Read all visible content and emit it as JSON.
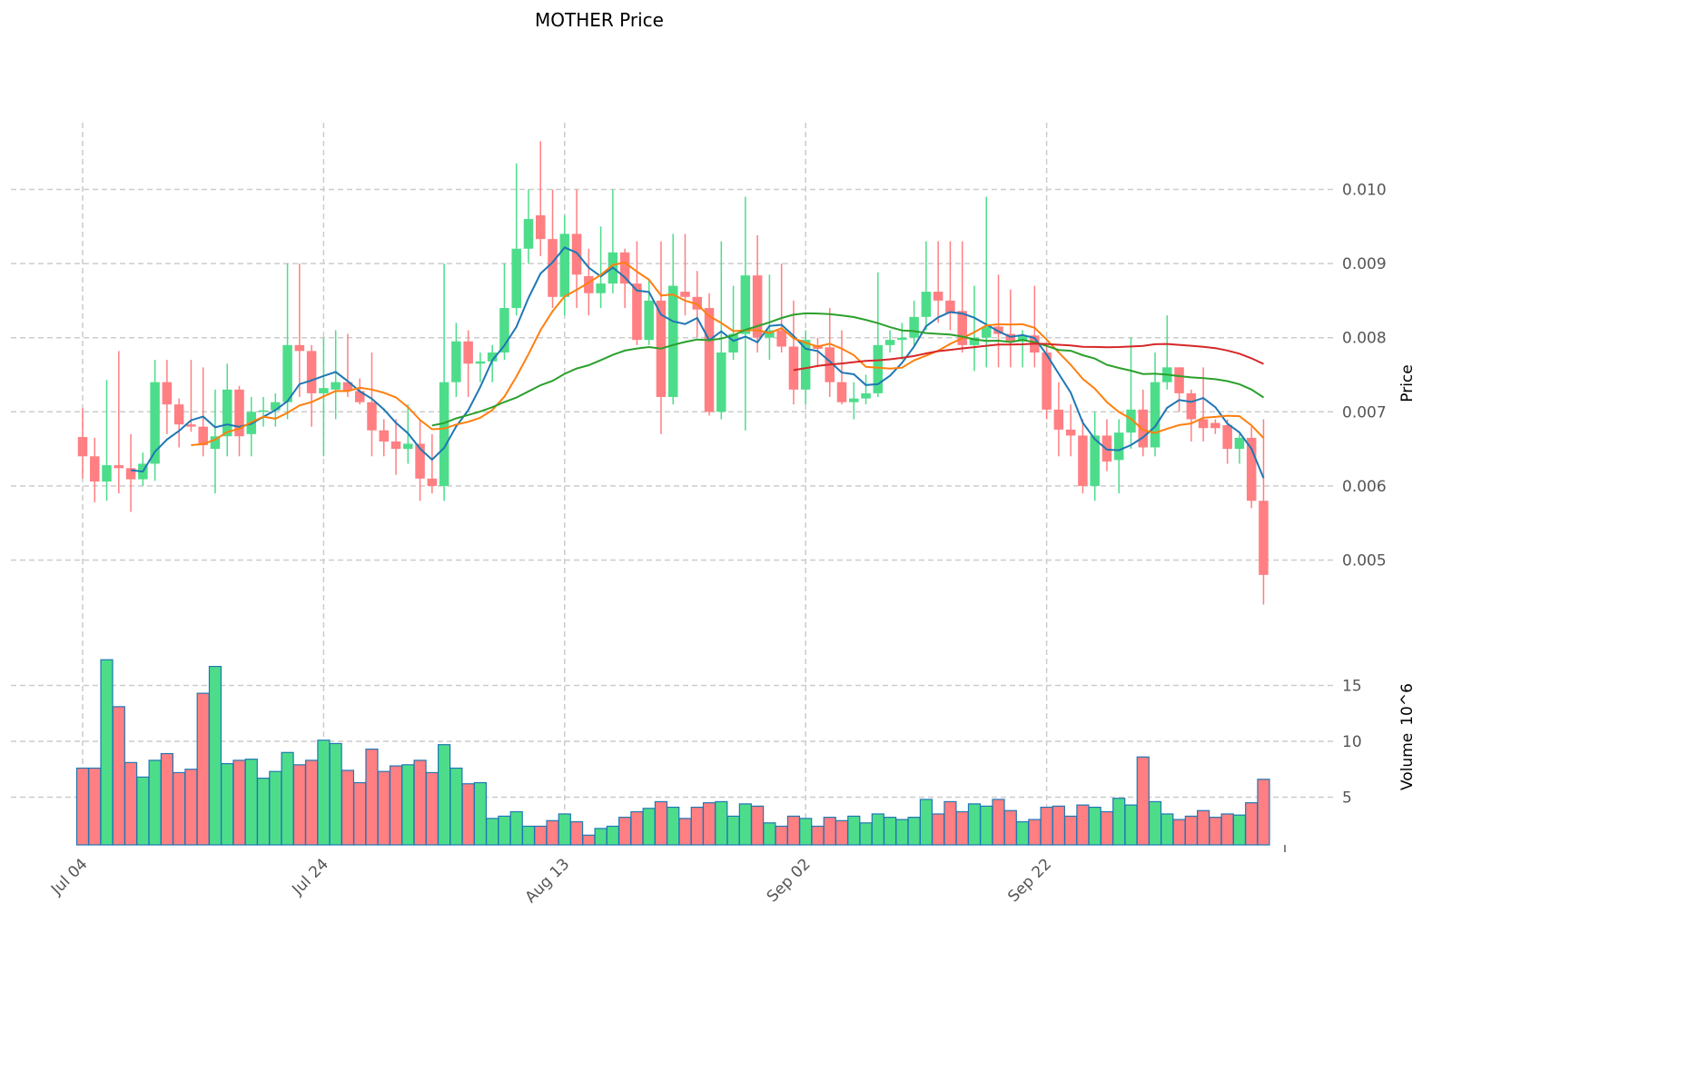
{
  "chart_data": {
    "type": "candlestick",
    "title": "MOTHER Price",
    "ylabel": "Price",
    "volume_label": "Volume",
    "volume_multiplier": "10^6",
    "volume_mult_base": "10",
    "volume_mult_exp": "6",
    "x_tick_labels": [
      "Jul 04",
      "Jul 24",
      "Aug 13",
      "Sep 02",
      "Sep 22"
    ],
    "x_tick_indices": [
      0,
      20,
      40,
      60,
      80
    ],
    "price_ticks": [
      "0.005",
      "0.006",
      "0.007",
      "0.008",
      "0.009",
      "0.010"
    ],
    "price_tick_values": [
      0.005,
      0.006,
      0.007,
      0.008,
      0.009,
      0.01
    ],
    "price_ylim": [
      0.0041,
      0.0109
    ],
    "volume_ticks": [
      "5",
      "10",
      "15"
    ],
    "volume_tick_values": [
      5,
      10,
      15
    ],
    "volume_ylim": [
      0,
      18.5
    ],
    "grid": true,
    "colors": {
      "up": "#4ddd8a",
      "down": "#ff7f82",
      "volume_edge": "#1f77b4",
      "grid": "#cccccc"
    },
    "moving_averages": [
      {
        "window": 5,
        "color": "#1f77b4"
      },
      {
        "window": 10,
        "color": "#ff7f0e"
      },
      {
        "window": 30,
        "color": "#2ca02c"
      },
      {
        "window": 60,
        "color": "#d62728"
      }
    ],
    "ohlc_columns": [
      "open",
      "high",
      "low",
      "close"
    ],
    "ohlc": [
      [
        0.00666,
        0.00705,
        0.0061,
        0.0064
      ],
      [
        0.0064,
        0.00665,
        0.00578,
        0.00606
      ],
      [
        0.00606,
        0.00743,
        0.0058,
        0.00628
      ],
      [
        0.00628,
        0.00782,
        0.0059,
        0.00624
      ],
      [
        0.00624,
        0.0067,
        0.00565,
        0.00609
      ],
      [
        0.00609,
        0.00645,
        0.006,
        0.0063
      ],
      [
        0.0063,
        0.0077,
        0.00607,
        0.0074
      ],
      [
        0.0074,
        0.0077,
        0.0067,
        0.0071
      ],
      [
        0.0071,
        0.00718,
        0.00652,
        0.00683
      ],
      [
        0.00683,
        0.0077,
        0.00673,
        0.0068
      ],
      [
        0.0068,
        0.0076,
        0.0064,
        0.00655
      ],
      [
        0.0065,
        0.0073,
        0.0059,
        0.00667
      ],
      [
        0.00667,
        0.00765,
        0.0064,
        0.0073
      ],
      [
        0.0073,
        0.00735,
        0.0064,
        0.00667
      ],
      [
        0.0067,
        0.0072,
        0.0064,
        0.007
      ],
      [
        0.007,
        0.0072,
        0.0068,
        0.00702
      ],
      [
        0.00702,
        0.00725,
        0.0068,
        0.00713
      ],
      [
        0.00713,
        0.009,
        0.0069,
        0.0079
      ],
      [
        0.0079,
        0.009,
        0.0072,
        0.00782
      ],
      [
        0.00782,
        0.0079,
        0.0068,
        0.00725
      ],
      [
        0.00725,
        0.008,
        0.0064,
        0.00732
      ],
      [
        0.0073,
        0.0081,
        0.0069,
        0.0074
      ],
      [
        0.0074,
        0.00805,
        0.0072,
        0.00728
      ],
      [
        0.00728,
        0.00745,
        0.0071,
        0.00713
      ],
      [
        0.00713,
        0.0078,
        0.0064,
        0.00675
      ],
      [
        0.00675,
        0.0069,
        0.0064,
        0.0066
      ],
      [
        0.0066,
        0.0069,
        0.00615,
        0.0065
      ],
      [
        0.0065,
        0.0071,
        0.0063,
        0.00657
      ],
      [
        0.00657,
        0.0069,
        0.0058,
        0.0061
      ],
      [
        0.0061,
        0.0067,
        0.0059,
        0.006
      ],
      [
        0.006,
        0.009,
        0.0058,
        0.0074
      ],
      [
        0.0074,
        0.0082,
        0.0072,
        0.00795
      ],
      [
        0.00795,
        0.0081,
        0.0072,
        0.00765
      ],
      [
        0.00765,
        0.0078,
        0.0074,
        0.00768
      ],
      [
        0.00768,
        0.0079,
        0.0074,
        0.0078
      ],
      [
        0.0078,
        0.009,
        0.0077,
        0.0084
      ],
      [
        0.0084,
        0.01035,
        0.0083,
        0.0092
      ],
      [
        0.0092,
        0.01,
        0.009,
        0.0096
      ],
      [
        0.00965,
        0.01065,
        0.0091,
        0.00933
      ],
      [
        0.00933,
        0.01,
        0.0084,
        0.00855
      ],
      [
        0.00855,
        0.00965,
        0.0083,
        0.0094
      ],
      [
        0.0094,
        0.01,
        0.0084,
        0.00885
      ],
      [
        0.00883,
        0.0092,
        0.0083,
        0.0086
      ],
      [
        0.0086,
        0.0095,
        0.0084,
        0.00873
      ],
      [
        0.00873,
        0.01,
        0.0086,
        0.00915
      ],
      [
        0.00915,
        0.0092,
        0.0084,
        0.00873
      ],
      [
        0.00873,
        0.0093,
        0.0079,
        0.00797
      ],
      [
        0.00797,
        0.0088,
        0.0079,
        0.0085
      ],
      [
        0.0085,
        0.0093,
        0.0067,
        0.0072
      ],
      [
        0.0072,
        0.0094,
        0.0071,
        0.0087
      ],
      [
        0.00862,
        0.0094,
        0.0083,
        0.00855
      ],
      [
        0.00855,
        0.0089,
        0.008,
        0.00838
      ],
      [
        0.0084,
        0.0086,
        0.00695,
        0.007
      ],
      [
        0.007,
        0.0093,
        0.0069,
        0.0078
      ],
      [
        0.0078,
        0.0087,
        0.0077,
        0.00805
      ],
      [
        0.00805,
        0.0099,
        0.00675,
        0.00884
      ],
      [
        0.00884,
        0.00938,
        0.0078,
        0.008
      ],
      [
        0.008,
        0.00885,
        0.0077,
        0.0081
      ],
      [
        0.0081,
        0.009,
        0.0078,
        0.00788
      ],
      [
        0.00788,
        0.0085,
        0.0071,
        0.0073
      ],
      [
        0.0073,
        0.0081,
        0.0071,
        0.00797
      ],
      [
        0.0079,
        0.008,
        0.0076,
        0.00785
      ],
      [
        0.00787,
        0.0084,
        0.0072,
        0.0074
      ],
      [
        0.0074,
        0.0081,
        0.0071,
        0.00713
      ],
      [
        0.00713,
        0.0074,
        0.0069,
        0.00718
      ],
      [
        0.00718,
        0.0075,
        0.0071,
        0.00725
      ],
      [
        0.00725,
        0.00888,
        0.0072,
        0.0079
      ],
      [
        0.0079,
        0.0081,
        0.0078,
        0.00797
      ],
      [
        0.00797,
        0.0082,
        0.0077,
        0.008
      ],
      [
        0.008,
        0.0085,
        0.0079,
        0.00828
      ],
      [
        0.00828,
        0.0093,
        0.0081,
        0.00862
      ],
      [
        0.00862,
        0.0093,
        0.0082,
        0.0085
      ],
      [
        0.0085,
        0.0093,
        0.0081,
        0.00833
      ],
      [
        0.00836,
        0.0093,
        0.0078,
        0.0079
      ],
      [
        0.0079,
        0.0087,
        0.00755,
        0.008
      ],
      [
        0.008,
        0.0099,
        0.0076,
        0.00815
      ],
      [
        0.00815,
        0.00885,
        0.0076,
        0.00805
      ],
      [
        0.00805,
        0.00865,
        0.0076,
        0.00795
      ],
      [
        0.00795,
        0.0081,
        0.0076,
        0.00803
      ],
      [
        0.00803,
        0.0087,
        0.0076,
        0.0078
      ],
      [
        0.0078,
        0.0079,
        0.0069,
        0.00703
      ],
      [
        0.00703,
        0.0074,
        0.0064,
        0.00676
      ],
      [
        0.00676,
        0.0071,
        0.0064,
        0.00668
      ],
      [
        0.00668,
        0.0069,
        0.0059,
        0.006
      ],
      [
        0.006,
        0.007,
        0.0058,
        0.00668
      ],
      [
        0.00668,
        0.0069,
        0.0062,
        0.00633
      ],
      [
        0.00635,
        0.0069,
        0.0059,
        0.00672
      ],
      [
        0.00672,
        0.008,
        0.0065,
        0.00703
      ],
      [
        0.00703,
        0.0073,
        0.0064,
        0.00652
      ],
      [
        0.00652,
        0.0078,
        0.0064,
        0.0074
      ],
      [
        0.0074,
        0.0083,
        0.0073,
        0.0076
      ],
      [
        0.0076,
        0.0076,
        0.007,
        0.00725
      ],
      [
        0.00725,
        0.0073,
        0.0066,
        0.0069
      ],
      [
        0.0069,
        0.0076,
        0.0066,
        0.00678
      ],
      [
        0.00685,
        0.0069,
        0.0067,
        0.00678
      ],
      [
        0.00682,
        0.0069,
        0.0063,
        0.0065
      ],
      [
        0.0065,
        0.0067,
        0.0063,
        0.00665
      ],
      [
        0.00665,
        0.0068,
        0.0057,
        0.0058
      ],
      [
        0.0058,
        0.0069,
        0.0044,
        0.0048
      ]
    ],
    "volume": [
      7.6,
      7.6,
      17.3,
      13.1,
      8.1,
      6.8,
      8.3,
      8.9,
      7.2,
      7.5,
      14.3,
      16.7,
      8.0,
      8.3,
      8.4,
      6.7,
      7.3,
      9.0,
      7.9,
      8.3,
      10.1,
      9.8,
      7.4,
      6.3,
      9.3,
      7.3,
      7.8,
      7.9,
      8.3,
      7.2,
      9.7,
      7.6,
      6.2,
      6.3,
      3.1,
      3.3,
      3.7,
      2.4,
      2.4,
      2.9,
      3.5,
      2.8,
      1.6,
      2.2,
      2.4,
      3.2,
      3.7,
      4.0,
      4.6,
      4.1,
      3.1,
      4.1,
      4.5,
      4.6,
      3.3,
      4.4,
      4.2,
      2.7,
      2.4,
      3.3,
      3.1,
      2.4,
      3.2,
      2.9,
      3.3,
      2.7,
      3.5,
      3.2,
      3.0,
      3.2,
      4.8,
      3.5,
      4.6,
      3.7,
      4.4,
      4.2,
      4.8,
      3.8,
      2.8,
      3.0,
      4.1,
      4.2,
      3.3,
      4.3,
      4.1,
      3.7,
      4.9,
      4.3,
      8.6,
      4.6,
      3.5,
      3.0,
      3.3,
      3.8,
      3.2,
      3.5,
      3.4,
      4.5,
      6.6
    ]
  }
}
